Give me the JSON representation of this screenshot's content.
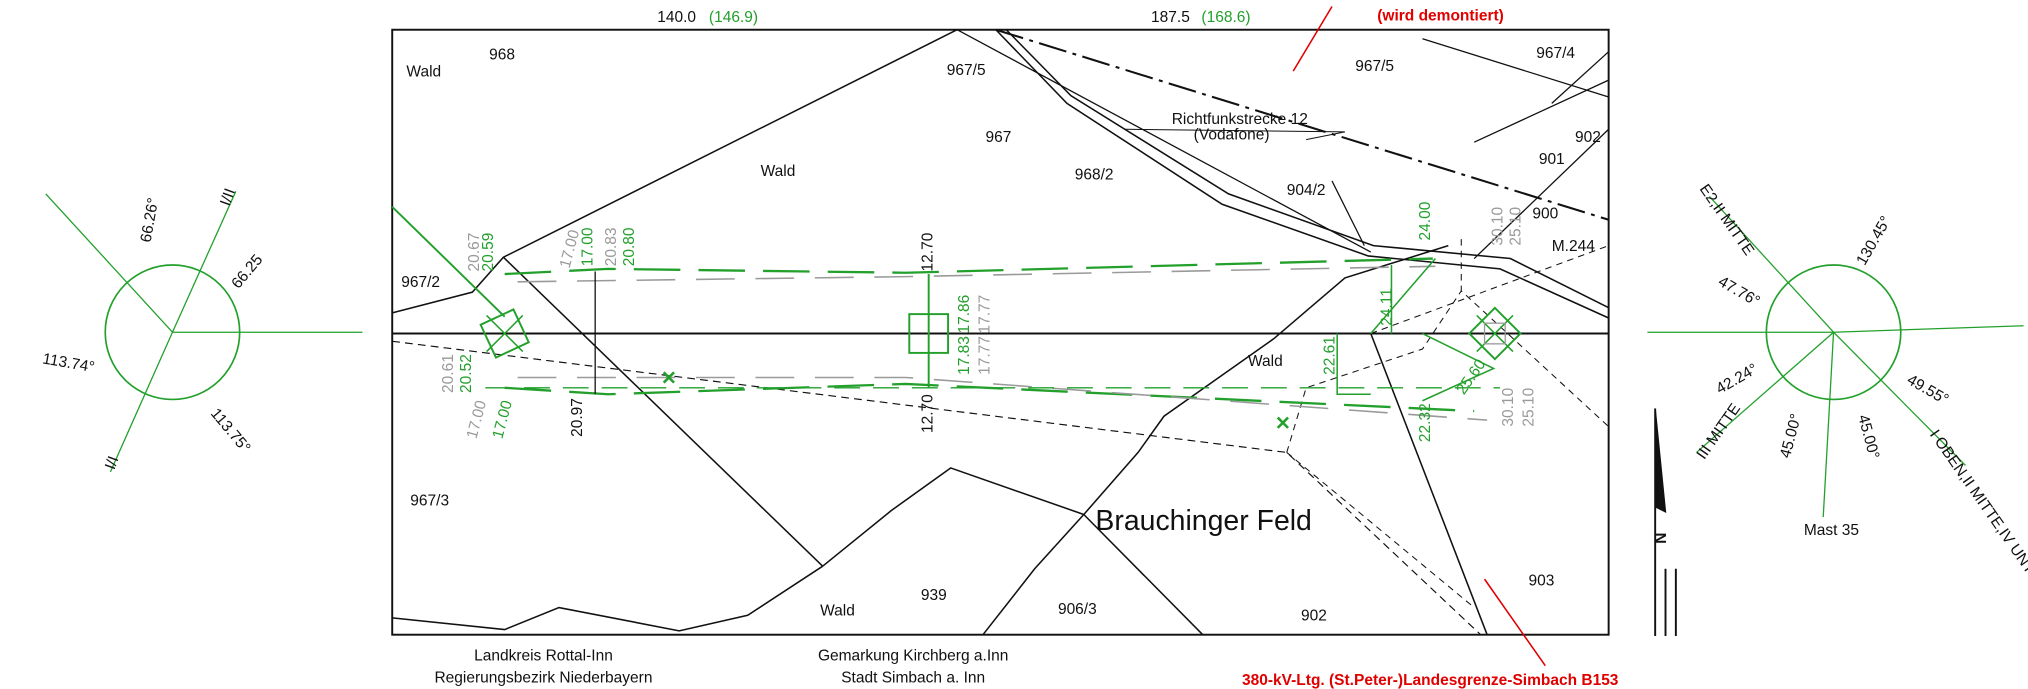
{
  "header": {
    "span_left": "140.0",
    "span_left_alt": "(146.9)",
    "span_right": "187.5",
    "span_right_alt": "(168.6)",
    "removed_note": "(wird demontiert)"
  },
  "parcels": [
    "Wald",
    "968",
    "967/5",
    "967/5",
    "967/4",
    "967",
    "Wald",
    "968/2",
    "902",
    "901",
    "900",
    "M.244",
    "904/2",
    "967/2",
    "Wald",
    "967/3",
    "Wald",
    "939",
    "906/3",
    "902",
    "903"
  ],
  "place_name": "Brauchinger Feld",
  "radio_link": {
    "name": "Richtfunkstrecke 12",
    "operator": "(Vodafone)"
  },
  "dimensions": [
    "20.67",
    "20.59",
    "17.00",
    "17.00",
    "20.83",
    "20.80",
    "12.70",
    "17.86",
    "17.77",
    "17.83",
    "17.77",
    "12.70",
    "20.61",
    "20.52",
    "17.00",
    "17.00",
    "20.97",
    "24.00",
    "30.10",
    "25.10",
    "24.11",
    "22.61",
    "22.32",
    "25.60",
    "30.10",
    "25.10"
  ],
  "footer": {
    "district": "Landkreis Rottal-Inn",
    "region": "Regierungsbezirk Niederbayern",
    "cadastral": "Gemarkung Kirchberg a.Inn",
    "town": "Stadt Simbach a. Inn",
    "line_name": "380-kV-Ltg. (St.Peter-)Landesgrenze-Simbach B153"
  },
  "left_diagram": {
    "labels": [
      "66.26°",
      "I/II",
      "66.25",
      "113.74°",
      "113.75°",
      "I/I"
    ]
  },
  "right_diagram": {
    "labels": [
      "E2,II MITTE",
      "130.45°",
      "47.76°",
      "42.24°",
      "49.55°",
      "III MITTE",
      "45.00°",
      "45.00°",
      "Mast 35",
      "I OBEN,II MITTE,IV UNTEN"
    ]
  },
  "north": "N"
}
